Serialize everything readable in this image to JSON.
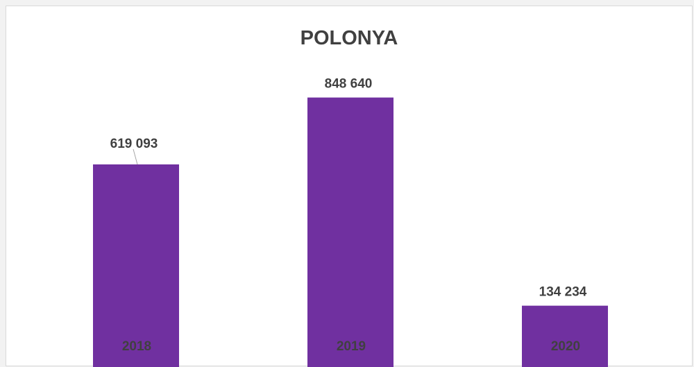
{
  "chart_data": {
    "type": "bar",
    "title": "POLONYA",
    "categories": [
      "2018",
      "2019",
      "2020"
    ],
    "values": [
      619093,
      848640,
      134234
    ],
    "data_labels": [
      "619 093",
      "848 640",
      "134 234"
    ],
    "ylim": [
      0,
      1000000
    ],
    "grid": false,
    "legend": "none",
    "bar_color": "#7030a0"
  }
}
